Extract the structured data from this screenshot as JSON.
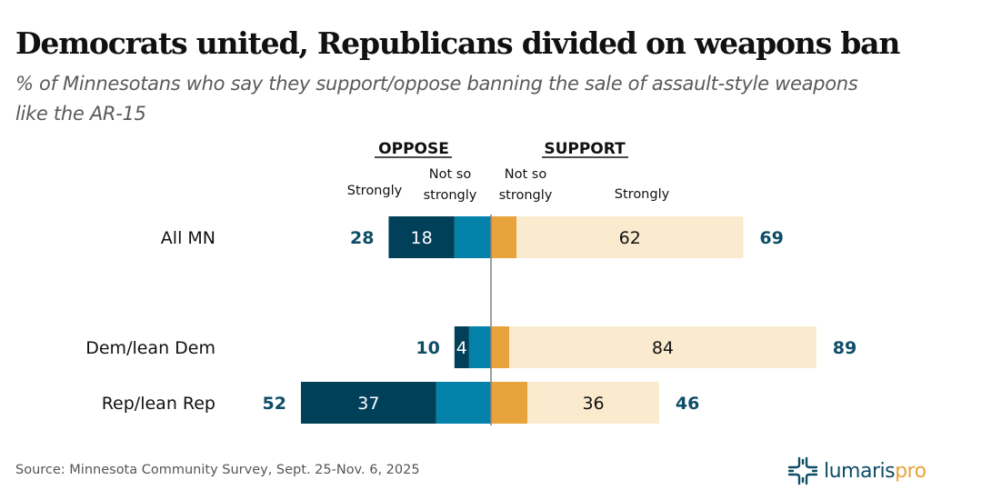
{
  "header": {
    "title": "Democrats united, Republicans divided on weapons ban",
    "subtitle": "% of Minnesotans who say they support/oppose banning the sale of assault-style weapons like the AR-15"
  },
  "footer": {
    "source": "Source: Minnesota Community Survey, Sept. 25-Nov. 6, 2025",
    "logo_text_a": "lumaris",
    "logo_text_b": "pro"
  },
  "colors": {
    "oppose_strongly": "#014059",
    "oppose_not_so": "#0481a8",
    "support_not_so": "#e8a33c",
    "support_strongly": "#faebce",
    "total_label": "#0e4d66",
    "divider": "#888888"
  },
  "chart_data": {
    "type": "bar",
    "orientation": "horizontal-diverging-stacked",
    "title": "Democrats united, Republicans divided on weapons ban",
    "subtitle": "% of Minnesotans who say they support/oppose banning the sale of assault-style weapons like the AR-15",
    "group_headers": {
      "oppose": "OPPOSE",
      "support": "SUPPORT"
    },
    "segment_headers": {
      "oppose_strongly": "Strongly",
      "oppose_not_so": [
        "Not so",
        "strongly"
      ],
      "support_not_so": [
        "Not so",
        "strongly"
      ],
      "support_strongly": "Strongly"
    },
    "categories": [
      "All MN",
      "Dem/lean Dem",
      "Rep/lean Rep"
    ],
    "series": [
      {
        "name": "Oppose strongly",
        "key": "oppose_strongly",
        "values": [
          18,
          4,
          37
        ]
      },
      {
        "name": "Oppose not so strongly",
        "key": "oppose_not_so",
        "values": [
          10,
          6,
          15
        ]
      },
      {
        "name": "Support not so strongly",
        "key": "support_not_so",
        "values": [
          7,
          5,
          10
        ]
      },
      {
        "name": "Support strongly",
        "key": "support_strongly",
        "values": [
          62,
          84,
          36
        ]
      }
    ],
    "segment_labels_shown": {
      "oppose_strongly": [
        "18",
        "4",
        "37"
      ],
      "support_strongly": [
        "62",
        "84",
        "36"
      ]
    },
    "totals": {
      "oppose": [
        28,
        10,
        52
      ],
      "support": [
        69,
        89,
        46
      ]
    },
    "xlabel": "",
    "ylabel": "",
    "grid": false
  }
}
